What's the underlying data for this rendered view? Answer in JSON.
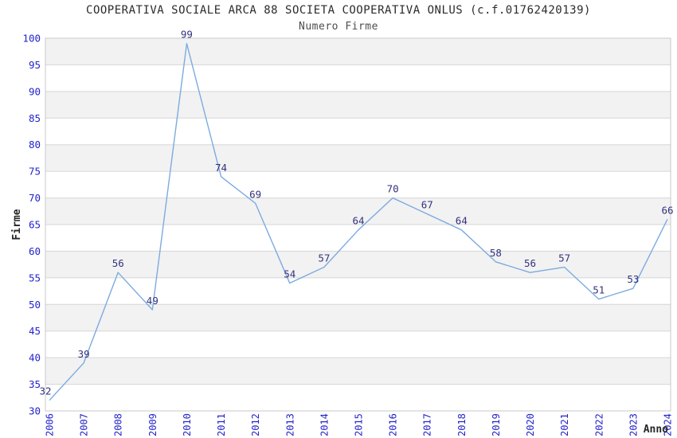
{
  "chart_data": {
    "type": "line",
    "title": "COOPERATIVA SOCIALE ARCA 88 SOCIETA COOPERATIVA ONLUS (c.f.01762420139)",
    "subtitle": "Numero Firme",
    "xlabel": "Anno",
    "ylabel": "Firme",
    "x": [
      2006,
      2007,
      2008,
      2009,
      2010,
      2011,
      2012,
      2013,
      2014,
      2015,
      2016,
      2017,
      2018,
      2019,
      2020,
      2021,
      2022,
      2023,
      2024
    ],
    "series": [
      {
        "name": "Numero Firme",
        "values": [
          32,
          39,
          56,
          49,
          99,
          74,
          69,
          54,
          57,
          64,
          70,
          67,
          64,
          58,
          56,
          57,
          51,
          53,
          66
        ]
      }
    ],
    "ylim": [
      30,
      100
    ],
    "ytick_step": 5,
    "grid": true,
    "bands_alternating": true,
    "legend": false,
    "point_labels": true,
    "colors": {
      "line": "#7cabdf",
      "tick_labels": "#2323cc",
      "point_labels": "#32327e",
      "band": "#f2f2f2",
      "gridline": "#d6d6d6",
      "border": "#c9c9c9",
      "title": "#2b2b2b",
      "subtitle": "#4d4d4d",
      "axis_label": "#262626",
      "plot_background": "#ffffff"
    }
  }
}
